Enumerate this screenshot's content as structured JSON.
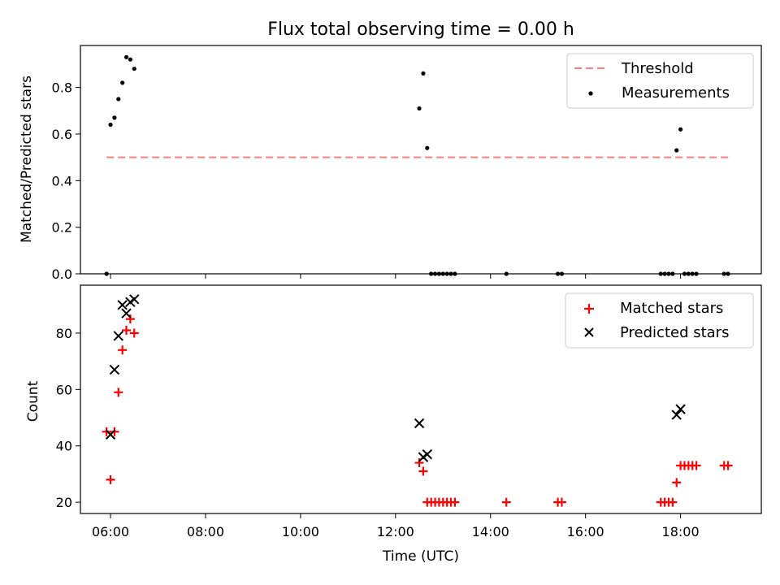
{
  "chart_data": [
    {
      "type": "scatter",
      "title": "Flux total observing time = 0.00 h",
      "xlabel": "",
      "ylabel": "Matched/Predicted stars",
      "x_unit": "time of day (UTC)",
      "xlim": [
        "05:22",
        "19:42"
      ],
      "ylim": [
        0,
        0.98
      ],
      "yticks": [
        0.0,
        0.2,
        0.4,
        0.6,
        0.8
      ],
      "ytick_labels": [
        "0.0",
        "0.2",
        "0.4",
        "0.6",
        "0.8"
      ],
      "legend_position": "top-right",
      "series": [
        {
          "name": "Threshold",
          "kind": "dashed-line",
          "color": "#ff7f7f",
          "x": [
            "05:55",
            "19:05"
          ],
          "y": [
            0.5,
            0.5
          ]
        },
        {
          "name": "Measurements",
          "kind": "dot",
          "color": "#000000",
          "x": [
            "05:55",
            "06:00",
            "06:05",
            "06:10",
            "06:15",
            "06:20",
            "06:25",
            "06:30",
            "12:30",
            "12:35",
            "12:40",
            "12:45",
            "12:50",
            "12:55",
            "13:00",
            "13:05",
            "13:10",
            "13:15",
            "14:20",
            "15:25",
            "15:30",
            "17:35",
            "17:40",
            "17:45",
            "17:50",
            "17:55",
            "18:00",
            "18:05",
            "18:10",
            "18:15",
            "18:20",
            "18:55",
            "19:00"
          ],
          "y": [
            0.0,
            0.64,
            0.67,
            0.75,
            0.82,
            0.93,
            0.92,
            0.88,
            0.71,
            0.86,
            0.54,
            0.0,
            0.0,
            0.0,
            0.0,
            0.0,
            0.0,
            0.0,
            0.0,
            0.0,
            0.0,
            0.0,
            0.0,
            0.0,
            0.0,
            0.53,
            0.62,
            0.0,
            0.0,
            0.0,
            0.0,
            0.0,
            0.0
          ]
        }
      ]
    },
    {
      "type": "scatter",
      "title": "",
      "xlabel": "Time (UTC)",
      "ylabel": "Count",
      "x_unit": "time of day (UTC)",
      "xlim": [
        "05:22",
        "19:42"
      ],
      "ylim": [
        16,
        97
      ],
      "xticks": [
        "06:00",
        "08:00",
        "10:00",
        "12:00",
        "14:00",
        "16:00",
        "18:00"
      ],
      "yticks": [
        20,
        40,
        60,
        80
      ],
      "ytick_labels": [
        "20",
        "40",
        "60",
        "80"
      ],
      "legend_position": "top-right",
      "series": [
        {
          "name": "Matched stars",
          "kind": "plus",
          "color": "#ff0000",
          "x": [
            "05:55",
            "06:00",
            "06:05",
            "06:10",
            "06:15",
            "06:20",
            "06:25",
            "06:30",
            "12:30",
            "12:35",
            "12:40",
            "12:45",
            "12:50",
            "12:55",
            "13:00",
            "13:05",
            "13:10",
            "13:15",
            "14:20",
            "15:25",
            "15:30",
            "17:35",
            "17:40",
            "17:45",
            "17:50",
            "17:55",
            "18:00",
            "18:05",
            "18:10",
            "18:15",
            "18:20",
            "18:55",
            "19:00"
          ],
          "y": [
            45,
            28,
            45,
            59,
            74,
            81,
            85,
            80,
            34,
            31,
            20,
            20,
            20,
            20,
            20,
            20,
            20,
            20,
            20,
            20,
            20,
            20,
            20,
            20,
            20,
            27,
            33,
            33,
            33,
            33,
            33,
            33,
            33
          ]
        },
        {
          "name": "Predicted stars",
          "kind": "x",
          "color": "#000000",
          "x": [
            "06:00",
            "06:05",
            "06:10",
            "06:15",
            "06:20",
            "06:25",
            "06:30",
            "12:30",
            "12:35",
            "12:40",
            "17:55",
            "18:00"
          ],
          "y": [
            44,
            67,
            79,
            90,
            87,
            91,
            92,
            48,
            36,
            37,
            51,
            53
          ]
        }
      ]
    }
  ]
}
